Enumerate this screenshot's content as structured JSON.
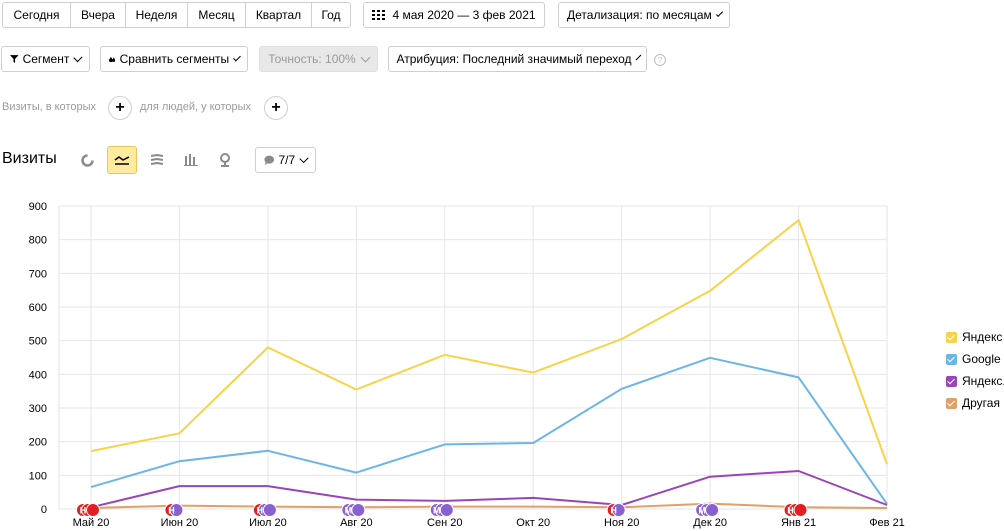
{
  "period_tabs": [
    "Сегодня",
    "Вчера",
    "Неделя",
    "Месяц",
    "Квартал",
    "Год"
  ],
  "date_range": "4 мая 2020 — 3 фев 2021",
  "detail": "Детализация: по месяцам",
  "segment": "Сегмент",
  "compare": "Сравнить сегменты",
  "accuracy": "Точность: 100%",
  "attribution": "Атрибуция: Последний значимый переход",
  "filter": {
    "visits_label": "Визиты, в которых",
    "people_label": "для людей, у которых"
  },
  "section_title": "Визиты",
  "series_selector": "7/7",
  "legend": [
    {
      "label": "Яндекс",
      "color": "#f8d347"
    },
    {
      "label": "Google",
      "color": "#6cb5e8"
    },
    {
      "label": "Яндекс.",
      "color": "#9b44b5"
    },
    {
      "label": "Другая р",
      "color": "#e0a069"
    }
  ],
  "chart_data": {
    "type": "line",
    "categories": [
      "Май 20",
      "Июн 20",
      "Июл 20",
      "Авг 20",
      "Сен 20",
      "Окт 20",
      "Ноя 20",
      "Дек 20",
      "Янв 21",
      "Фев 21"
    ],
    "ylim": [
      0,
      900
    ],
    "yticks": [
      0,
      100,
      200,
      300,
      400,
      500,
      600,
      700,
      800,
      900
    ],
    "series": [
      {
        "name": "Яндекс",
        "color": "#f8d347",
        "values": [
          172,
          225,
          480,
          355,
          458,
          405,
          505,
          648,
          858,
          133
        ]
      },
      {
        "name": "Google",
        "color": "#6cb5e8",
        "values": [
          65,
          142,
          173,
          108,
          192,
          196,
          357,
          449,
          391,
          15
        ]
      },
      {
        "name": "Яндекс.",
        "color": "#9b44b5",
        "values": [
          5,
          68,
          68,
          28,
          24,
          33,
          12,
          96,
          113,
          12
        ]
      },
      {
        "name": "Другая р",
        "color": "#e0a069",
        "values": [
          3,
          10,
          7,
          5,
          7,
          7,
          5,
          16,
          5,
          3
        ]
      }
    ],
    "markers": [
      {
        "x": 0,
        "letters": [
          "Н",
          "Н",
          "Н"
        ],
        "color": "#e02020"
      },
      {
        "x": 1,
        "letters": [
          "Н",
          "М"
        ],
        "color": "#e02020"
      },
      {
        "x": 2,
        "letters": [
          "Н",
          "М",
          "М"
        ],
        "color": "#e02020"
      },
      {
        "x": 3,
        "letters": [
          "М",
          "М",
          "М"
        ],
        "color": "#8a5fd0"
      },
      {
        "x": 4,
        "letters": [
          "М",
          "М",
          "М"
        ],
        "color": "#8a5fd0"
      },
      {
        "x": 6,
        "letters": [
          "Н",
          "М"
        ],
        "color": "#e02020"
      },
      {
        "x": 7,
        "letters": [
          "М",
          "М",
          "М"
        ],
        "color": "#8a5fd0"
      },
      {
        "x": 8,
        "letters": [
          "Н",
          "Н",
          "Н"
        ],
        "color": "#e02020"
      }
    ],
    "grid": true,
    "legend_position": "right"
  }
}
